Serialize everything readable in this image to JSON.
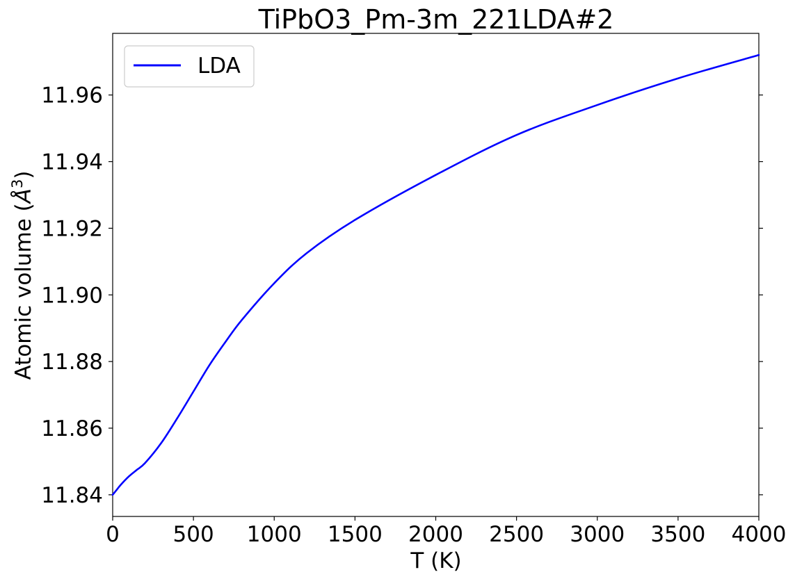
{
  "chart_data": {
    "type": "line",
    "title": "TiPbO3_Pm-3m_221LDA#2",
    "xlabel": "T (K)",
    "ylabel_text": "Atomic volume (",
    "ylabel_unit": "Å",
    "ylabel_sup": "3",
    "ylabel_close": ")",
    "xlim": [
      0,
      4000
    ],
    "ylim": [
      11.8335,
      11.9785
    ],
    "xticks": [
      0,
      500,
      1000,
      1500,
      2000,
      2500,
      3000,
      3500,
      4000
    ],
    "xtick_labels": [
      "0",
      "500",
      "1000",
      "1500",
      "2000",
      "2500",
      "3000",
      "3500",
      "4000"
    ],
    "yticks": [
      11.84,
      11.86,
      11.88,
      11.9,
      11.92,
      11.94,
      11.96
    ],
    "ytick_labels": [
      "11.84",
      "11.86",
      "11.88",
      "11.90",
      "11.92",
      "11.94",
      "11.96"
    ],
    "grid": false,
    "legend_position": "top-left",
    "series": [
      {
        "name": "LDA",
        "color": "#0000ff",
        "x": [
          0,
          25,
          50,
          100,
          150,
          200,
          300,
          400,
          500,
          600,
          700,
          800,
          1000,
          1200,
          1500,
          2000,
          2500,
          3000,
          3500,
          4000
        ],
        "y": [
          11.84,
          11.8415,
          11.843,
          11.8455,
          11.8475,
          11.8495,
          11.8555,
          11.863,
          11.871,
          11.879,
          11.886,
          11.8925,
          11.9035,
          11.9125,
          11.9225,
          11.936,
          11.948,
          11.957,
          11.965,
          11.972
        ]
      }
    ]
  }
}
